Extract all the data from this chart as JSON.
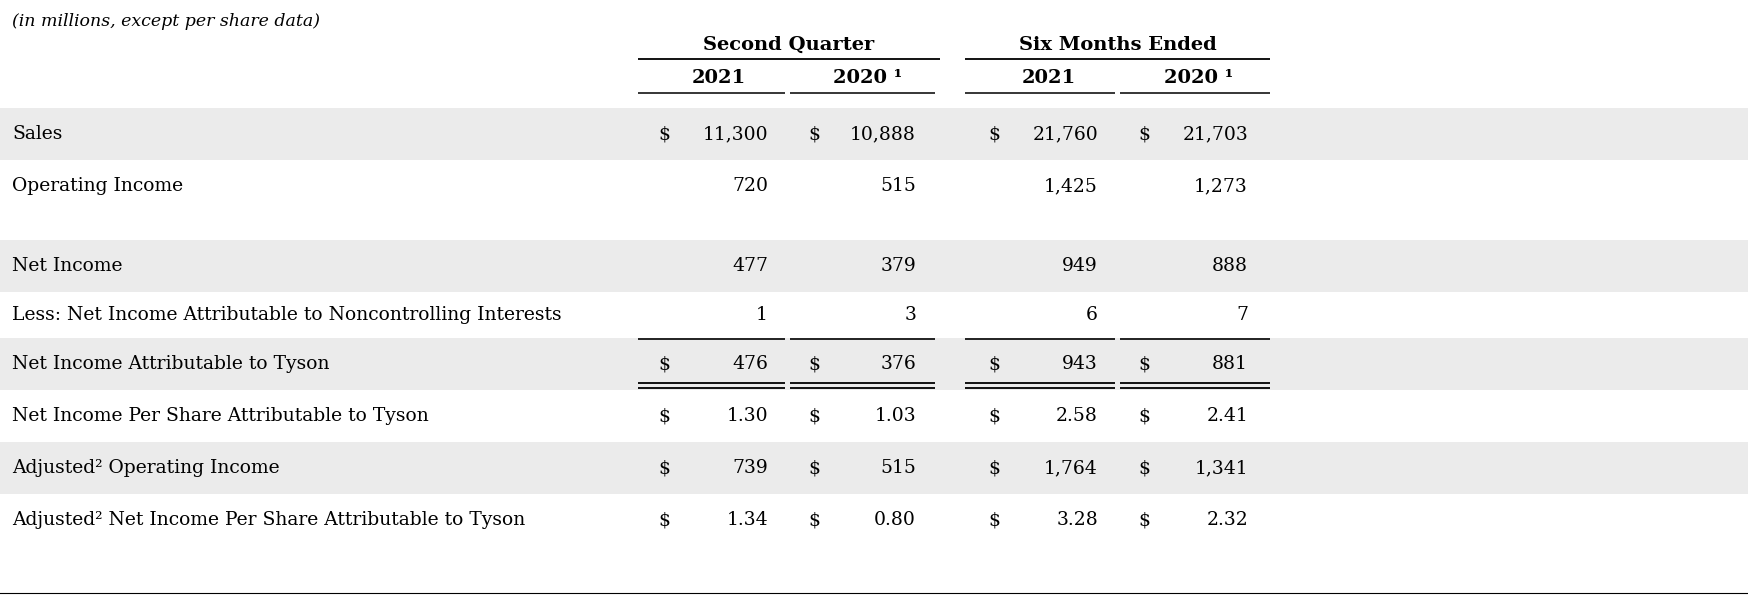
{
  "header_note": "(in millions, except per share data)",
  "col_group_labels": [
    "Second Quarter",
    "Six Months Ended"
  ],
  "col_labels": [
    "2021",
    "2020 ¹",
    "2021",
    "2020 ¹"
  ],
  "rows": [
    {
      "label": "Sales",
      "values": [
        "$",
        "11,300",
        "$",
        "10,888",
        "$",
        "21,760",
        "$",
        "21,703"
      ],
      "bg": "#ebebeb",
      "double_underline": false,
      "single_underline_above": false
    },
    {
      "label": "Operating Income",
      "values": [
        "",
        "720",
        "",
        "515",
        "",
        "1,425",
        "",
        "1,273"
      ],
      "bg": "#ffffff",
      "double_underline": false,
      "single_underline_above": false
    },
    {
      "label": "",
      "values": [
        "",
        "",
        "",
        "",
        "",
        "",
        "",
        ""
      ],
      "bg": "#ffffff",
      "double_underline": false,
      "single_underline_above": false
    },
    {
      "label": "Net Income",
      "values": [
        "",
        "477",
        "",
        "379",
        "",
        "949",
        "",
        "888"
      ],
      "bg": "#ebebeb",
      "double_underline": false,
      "single_underline_above": false
    },
    {
      "label": "Less: Net Income Attributable to Noncontrolling Interests",
      "values": [
        "",
        "1",
        "",
        "3",
        "",
        "6",
        "",
        "7"
      ],
      "bg": "#ffffff",
      "double_underline": false,
      "single_underline_above": false
    },
    {
      "label": "Net Income Attributable to Tyson",
      "values": [
        "$",
        "476",
        "$",
        "376",
        "$",
        "943",
        "$",
        "881"
      ],
      "bg": "#ebebeb",
      "double_underline": true,
      "single_underline_above": true
    },
    {
      "label": "Net Income Per Share Attributable to Tyson",
      "values": [
        "$",
        "1.30",
        "$",
        "1.03",
        "$",
        "2.58",
        "$",
        "2.41"
      ],
      "bg": "#ffffff",
      "double_underline": false,
      "single_underline_above": false
    },
    {
      "label": "Adjusted² Operating Income",
      "values": [
        "$",
        "739",
        "$",
        "515",
        "$",
        "1,764",
        "$",
        "1,341"
      ],
      "bg": "#ebebeb",
      "double_underline": false,
      "single_underline_above": false
    },
    {
      "label": "Adjusted² Net Income Per Share Attributable to Tyson",
      "values": [
        "$",
        "1.34",
        "$",
        "0.80",
        "$",
        "3.28",
        "$",
        "2.32"
      ],
      "bg": "#ffffff",
      "double_underline": false,
      "single_underline_above": false
    }
  ],
  "bg_color": "#ffffff",
  "text_color": "#000000",
  "font_size": 13.5,
  "header_font_size": 14.0,
  "note_font_size": 12.5,
  "fig_width": 17.48,
  "fig_height": 5.96,
  "dpi": 100
}
